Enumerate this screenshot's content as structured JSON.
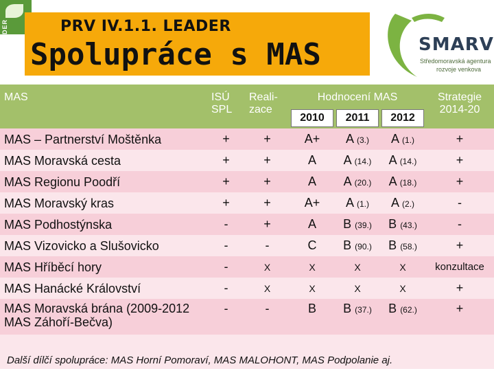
{
  "header": {
    "subtitle": "PRV IV.1.1. LEADER",
    "title": "Spolupráce s MAS"
  },
  "logos": {
    "leader_text": "LEADER",
    "smarv_name": "SMARV",
    "smarv_tagline_1": "Středomoravská agentura",
    "smarv_tagline_2": "rozvoje venkova"
  },
  "table": {
    "col_mas": "MAS",
    "col_isu": "ISÚ SPL",
    "col_real": "Reali- zace",
    "col_eval": "Hodnocení MAS",
    "years": [
      "2010",
      "2011",
      "2012"
    ],
    "col_strategy": "Strategie 2014-20",
    "rows": [
      {
        "name": "MAS – Partnerství Moštěnka",
        "isu": "+",
        "real": "+",
        "y2010": "A+",
        "y2011": "A",
        "y2011_rank": "(3.)",
        "y2012": "A",
        "y2012_rank": "(1.)",
        "strategy": "+"
      },
      {
        "name": "MAS Moravská cesta",
        "isu": "+",
        "real": "+",
        "y2010": "A",
        "y2011": "A",
        "y2011_rank": "(14.)",
        "y2012": "A",
        "y2012_rank": "(14.)",
        "strategy": "+"
      },
      {
        "name": "MAS Regionu Poodří",
        "isu": "+",
        "real": "+",
        "y2010": "A",
        "y2011": "A",
        "y2011_rank": "(20.)",
        "y2012": "A",
        "y2012_rank": "(18.)",
        "strategy": "+"
      },
      {
        "name": "MAS Moravský kras",
        "isu": "+",
        "real": "+",
        "y2010": "A+",
        "y2011": "A",
        "y2011_rank": "(1.)",
        "y2012": "A",
        "y2012_rank": "(2.)",
        "strategy": "-"
      },
      {
        "name": "MAS Podhostýnska",
        "isu": "-",
        "real": "+",
        "y2010": "A",
        "y2011": "B",
        "y2011_rank": "(39.)",
        "y2012": "B",
        "y2012_rank": "(43.)",
        "strategy": "-"
      },
      {
        "name": "MAS Vizovicko a Slušovicko",
        "isu": "-",
        "real": "-",
        "y2010": "C",
        "y2011": "B",
        "y2011_rank": "(90.)",
        "y2012": "B",
        "y2012_rank": "(58.)",
        "strategy": "+"
      },
      {
        "name": "MAS Hříběcí hory",
        "isu": "-",
        "real": "X",
        "y2010": "X",
        "y2011": "X",
        "y2011_rank": "",
        "y2012": "X",
        "y2012_rank": "",
        "strategy": "konzultace"
      },
      {
        "name": "MAS Hanácké Království",
        "isu": "-",
        "real": "X",
        "y2010": "X",
        "y2011": "X",
        "y2011_rank": "",
        "y2012": "X",
        "y2012_rank": "",
        "strategy": "+"
      },
      {
        "name": "MAS Moravská brána (2009-2012 MAS Záhoří-Bečva)",
        "isu": "-",
        "real": "-",
        "y2010": "B",
        "y2011": "B",
        "y2011_rank": "(37.)",
        "y2012": "B",
        "y2012_rank": "(62.)",
        "strategy": "+"
      }
    ]
  },
  "footer": {
    "note": "Další dílčí spolupráce: MAS Horní Pomoraví, MAS MALOHONT, MAS Podpolanie aj."
  },
  "colors": {
    "header_orange": "#f6a90a",
    "table_header_green": "#a3c06a",
    "row_pink_dark": "#f7cfd9",
    "row_pink_light": "#fbe6eb",
    "smarv_green": "#7cb342",
    "smarv_navy": "#2d3f56"
  }
}
